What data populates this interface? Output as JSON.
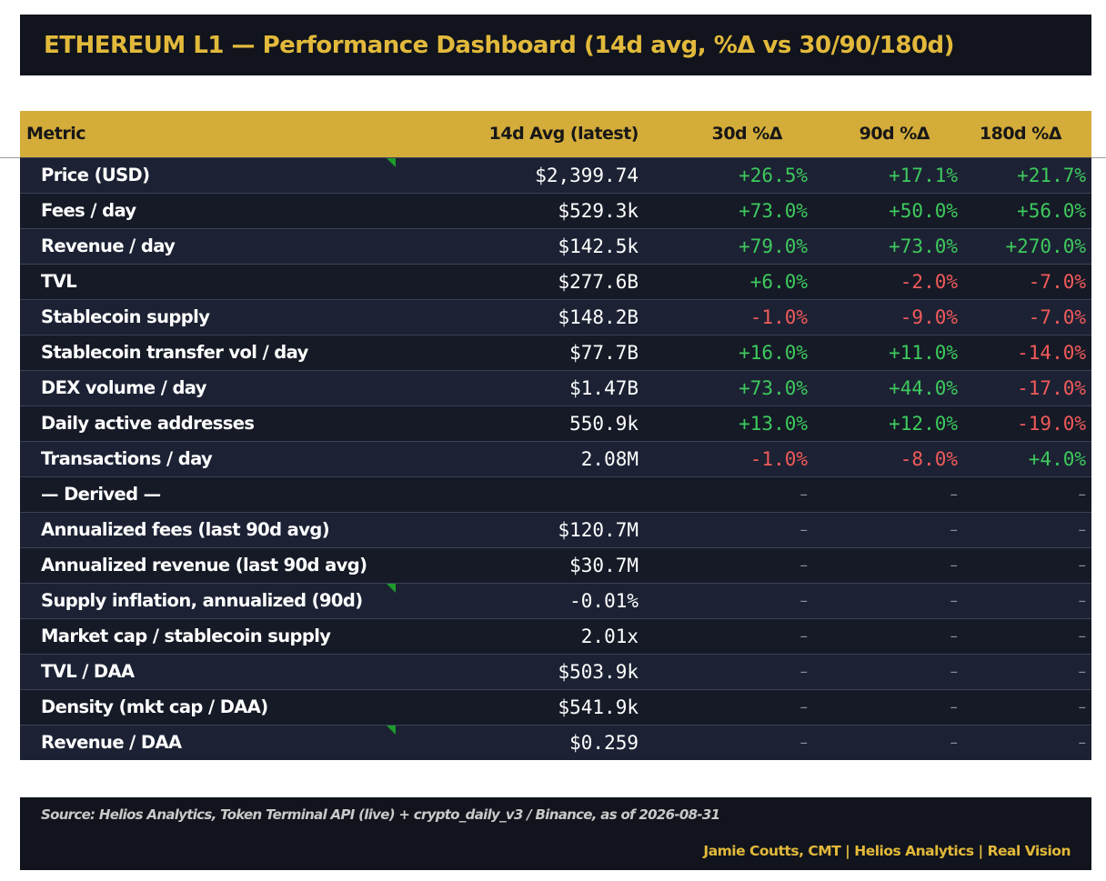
{
  "title": "ETHEREUM L1 — Performance Dashboard (14d avg, %Δ vs 30/90/180d)",
  "colors": {
    "title_bg": "#11141c",
    "accent_gold": "#e2b93b",
    "header_bg": "#d4ac3a",
    "row_odd": "#1c2234",
    "row_even": "#151a26",
    "positive": "#3ec95d",
    "negative": "#f05a5a",
    "marker": "#1c9a2a"
  },
  "table": {
    "headers": [
      "Metric",
      "14d Avg (latest)",
      "30d %Δ",
      "90d %Δ",
      "180d %Δ"
    ],
    "rows": [
      {
        "metric": "Price (USD)",
        "avg": "$2,399.74",
        "d30": "+26.5%",
        "d90": "+17.1%",
        "d180": "+21.7%",
        "marker": true
      },
      {
        "metric": "Fees / day",
        "avg": "$529.3k",
        "d30": "+73.0%",
        "d90": "+50.0%",
        "d180": "+56.0%"
      },
      {
        "metric": "Revenue / day",
        "avg": "$142.5k",
        "d30": "+79.0%",
        "d90": "+73.0%",
        "d180": "+270.0%"
      },
      {
        "metric": "TVL",
        "avg": "$277.6B",
        "d30": "+6.0%",
        "d90": "-2.0%",
        "d180": "-7.0%"
      },
      {
        "metric": "Stablecoin supply",
        "avg": "$148.2B",
        "d30": "-1.0%",
        "d90": "-9.0%",
        "d180": "-7.0%"
      },
      {
        "metric": "Stablecoin transfer vol / day",
        "avg": "$77.7B",
        "d30": "+16.0%",
        "d90": "+11.0%",
        "d180": "-14.0%"
      },
      {
        "metric": "DEX volume / day",
        "avg": "$1.47B",
        "d30": "+73.0%",
        "d90": "+44.0%",
        "d180": "-17.0%"
      },
      {
        "metric": "Daily active addresses",
        "avg": "550.9k",
        "d30": "+13.0%",
        "d90": "+12.0%",
        "d180": "-19.0%"
      },
      {
        "metric": "Transactions / day",
        "avg": "2.08M",
        "d30": "-1.0%",
        "d90": "-8.0%",
        "d180": "+4.0%"
      },
      {
        "metric": "— Derived —",
        "avg": "",
        "d30": "–",
        "d90": "–",
        "d180": "–"
      },
      {
        "metric": "Annualized fees (last 90d avg)",
        "avg": "$120.7M",
        "d30": "–",
        "d90": "–",
        "d180": "–"
      },
      {
        "metric": "Annualized revenue (last 90d avg)",
        "avg": "$30.7M",
        "d30": "–",
        "d90": "–",
        "d180": "–"
      },
      {
        "metric": "Supply inflation, annualized (90d)",
        "avg": "-0.01%",
        "d30": "–",
        "d90": "–",
        "d180": "–",
        "marker": true
      },
      {
        "metric": "Market cap / stablecoin supply",
        "avg": "2.01x",
        "d30": "–",
        "d90": "–",
        "d180": "–"
      },
      {
        "metric": "TVL / DAA",
        "avg": "$503.9k",
        "d30": "–",
        "d90": "–",
        "d180": "–"
      },
      {
        "metric": "Density (mkt cap / DAA)",
        "avg": "$541.9k",
        "d30": "–",
        "d90": "–",
        "d180": "–"
      },
      {
        "metric": "Revenue / DAA",
        "avg": "$0.259",
        "d30": "–",
        "d90": "–",
        "d180": "–",
        "marker": true
      }
    ]
  },
  "footer": {
    "source": "Source: Helios Analytics, Token Terminal API (live) + crypto_daily_v3 / Binance, as of 2026-08-31",
    "credit": "Jamie Coutts, CMT | Helios Analytics | Real Vision"
  }
}
